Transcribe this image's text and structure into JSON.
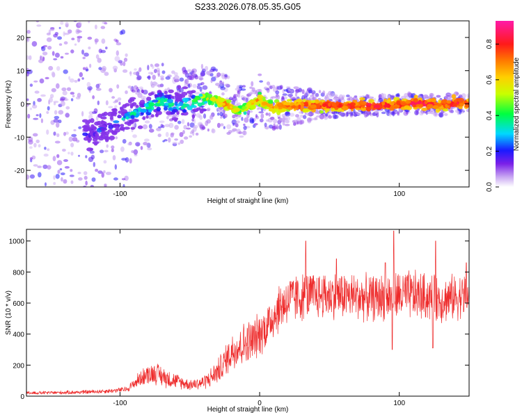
{
  "figure_title": "S233.2026.078.05.35.G05",
  "colors": {
    "snr_line": "#ee2a2a",
    "axis": "#000000",
    "background": "#ffffff"
  },
  "chart_data": [
    {
      "type": "heatmap",
      "title": "S233.2026.078.05.35.G05",
      "xlabel": "Height of straight line (km)",
      "ylabel": "Frequency (Hz)",
      "xlim": [
        -167,
        150
      ],
      "ylim": [
        -25,
        25
      ],
      "x_ticks": [
        -100,
        0,
        100
      ],
      "x_tick_labels": [
        "-100",
        "0",
        "100"
      ],
      "y_ticks": [
        -20,
        -10,
        0,
        10,
        20
      ],
      "y_tick_labels": [
        "-20",
        "-10",
        "0",
        "10",
        "20"
      ],
      "colorbar": {
        "label": "Normalized spectral amplitude",
        "range": [
          0,
          0.93
        ],
        "ticks": [
          0.0,
          0.2,
          0.4,
          0.6,
          0.8
        ],
        "tick_labels": [
          "0.0",
          "0.2",
          "0.4",
          "0.6",
          "0.8"
        ]
      },
      "ridge": {
        "description": "frequency of peak spectral amplitude vs height",
        "x": [
          -120,
          -110,
          -100,
          -90,
          -80,
          -70,
          -60,
          -50,
          -45,
          -40,
          -35,
          -30,
          -25,
          -20,
          -15,
          -10,
          -5,
          0,
          5,
          10,
          20,
          40,
          60,
          80,
          100,
          110,
          120,
          130,
          140,
          150
        ],
        "freq": [
          -9,
          -7,
          -5,
          -3,
          -1,
          1,
          -1,
          0,
          1,
          2,
          1.5,
          1,
          0,
          -1,
          -2,
          -1,
          0,
          1.5,
          -0.5,
          -1,
          -0.5,
          -0.5,
          -0.5,
          -0.5,
          -0.3,
          0.3,
          0,
          -0.5,
          0.3,
          0
        ],
        "amplitude": [
          0.25,
          0.3,
          0.35,
          0.4,
          0.45,
          0.5,
          0.45,
          0.5,
          0.55,
          0.6,
          0.6,
          0.65,
          0.8,
          0.7,
          0.6,
          0.65,
          0.7,
          0.75,
          0.7,
          0.75,
          0.8,
          0.85,
          0.85,
          0.9,
          0.85,
          0.9,
          0.9,
          0.85,
          0.9,
          0.85
        ]
      },
      "scatter_noise": {
        "description": "low-amplitude spectral noise, wide spread below about -95 km, narrowing with height",
        "x_range": [
          -167,
          150
        ],
        "amplitude_range": [
          0.0,
          0.2
        ]
      }
    },
    {
      "type": "line",
      "xlabel": "Height of straight line (km)",
      "ylabel": "SNR (10 * v/v)",
      "xlim": [
        -167,
        150
      ],
      "ylim": [
        0,
        1075
      ],
      "x_ticks": [
        -100,
        0,
        100
      ],
      "x_tick_labels": [
        "-100",
        "0",
        "100"
      ],
      "y_ticks": [
        0,
        200,
        400,
        600,
        800,
        1000
      ],
      "y_tick_labels": [
        "0",
        "200",
        "400",
        "600",
        "800",
        "1000"
      ],
      "series": [
        {
          "name": "SNR",
          "x": [
            -167,
            -150,
            -130,
            -115,
            -105,
            -95,
            -90,
            -85,
            -80,
            -75,
            -70,
            -65,
            -60,
            -55,
            -50,
            -45,
            -40,
            -35,
            -30,
            -25,
            -20,
            -15,
            -10,
            -5,
            0,
            5,
            10,
            15,
            20,
            30,
            40,
            50,
            60,
            70,
            80,
            90,
            100,
            110,
            120,
            130,
            140,
            150
          ],
          "mean": [
            20,
            22,
            25,
            30,
            35,
            45,
            80,
            120,
            140,
            150,
            130,
            110,
            100,
            85,
            75,
            80,
            90,
            120,
            160,
            220,
            290,
            320,
            340,
            360,
            400,
            450,
            520,
            580,
            620,
            640,
            650,
            650,
            650,
            640,
            630,
            640,
            650,
            650,
            640,
            620,
            640,
            650
          ],
          "spread": [
            12,
            12,
            14,
            15,
            16,
            20,
            40,
            60,
            70,
            80,
            75,
            65,
            55,
            45,
            40,
            45,
            50,
            70,
            90,
            110,
            140,
            150,
            160,
            160,
            160,
            160,
            170,
            180,
            180,
            175,
            170,
            170,
            170,
            170,
            165,
            170,
            180,
            180,
            170,
            165,
            165,
            160
          ],
          "peaks": [
            {
              "x": 33,
              "y": 1000
            },
            {
              "x": 55,
              "y": 885
            },
            {
              "x": 90,
              "y": 860
            },
            {
              "x": 96,
              "y": 1065
            },
            {
              "x": 126,
              "y": 1000
            },
            {
              "x": 148,
              "y": 860
            }
          ],
          "dips": [
            {
              "x": 95,
              "y": 300
            },
            {
              "x": 124,
              "y": 310
            }
          ]
        }
      ]
    }
  ]
}
